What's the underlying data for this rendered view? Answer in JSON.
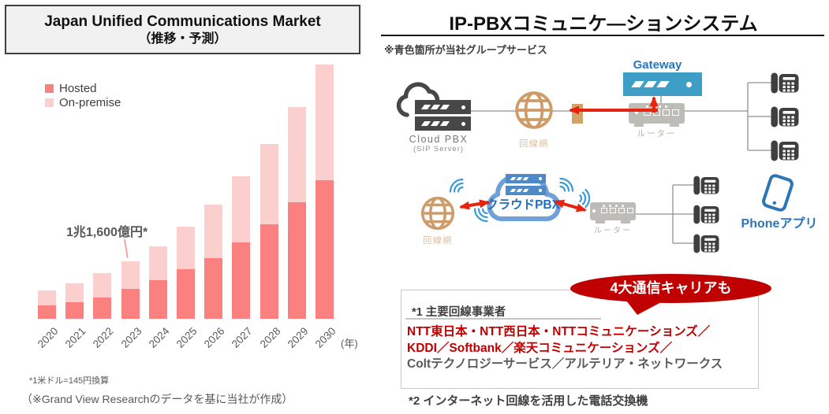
{
  "left_panel": {
    "title_line1": "Japan Unified Communications Market",
    "title_line2": "（推移・予測）",
    "axis_unit": "(年)",
    "footnote1": "*1米ドル=145円換算",
    "footnote2": "（※Grand View Researchのデータを基に当社が作成）"
  },
  "chart_data": {
    "type": "bar",
    "stacked": true,
    "title": "Japan Unified Communications Market（推移・予測）",
    "categories": [
      "2020",
      "2021",
      "2022",
      "2023",
      "2024",
      "2025",
      "2026",
      "2027",
      "2028",
      "2029",
      "2030"
    ],
    "series": [
      {
        "name": "Hosted",
        "color": "#FB8080",
        "values": [
          2700,
          3350,
          4300,
          6050,
          7800,
          10000,
          12250,
          15400,
          19050,
          23500,
          28000
        ]
      },
      {
        "name": "On-premise",
        "color": "#FCCFCF",
        "values": [
          3000,
          3800,
          4900,
          5550,
          6850,
          8600,
          10800,
          13350,
          16200,
          19250,
          23350
        ]
      }
    ],
    "unit": "億円（推定・2023年合計=1兆1,600億円基準）",
    "annotation": {
      "text": "1兆1,600億円*",
      "target_category": "2023"
    },
    "xlabel": "(年)",
    "ylabel": "",
    "legend_position": "top-left",
    "gridlines": false,
    "y_axis_shown": false
  },
  "right_panel": {
    "title": "IP-PBXコミュニケ―ションシステム",
    "note": "※青色箇所が当社グループサービス",
    "diagram": {
      "cloud_pbx_label": "Cloud PBX",
      "cloud_pbx_sublabel": "(SIP Server)",
      "network_label_top": "回線網",
      "network_label_mid": "回線網",
      "gateway_label": "Gateway",
      "router_label_top": "ルーター",
      "router_label_mid": "ルーター",
      "cloud_pbx_jp_label": "クラウドPBX",
      "phone_app_label": "Phoneアプリ"
    },
    "badge": "4大通信キャリアも",
    "carriers_box": {
      "heading": "*1 主要回線事業者",
      "lines": [
        {
          "text": "NTT東日本・NTT西日本・NTTコミュニケーションズ／",
          "color": "#C00000"
        },
        {
          "text": "KDDI／Softbank／楽天コミュニケーションズ／",
          "color": "#C00000"
        },
        {
          "text": "Coltテクノロジーサービス／アルテリア・ネットワークス",
          "color": "#595959"
        }
      ]
    },
    "footnote": "*2 インターネット回線を活用した電話交換機"
  },
  "colors": {
    "hosted": "#FB8080",
    "on_premise": "#FCCFCF",
    "leader_pink": "#F0A6A6",
    "badge_red": "#C00000",
    "arrow_red": "#E8230D",
    "gateway_blue": "#3E9EC6",
    "cloud_stroke_blue": "#6FA0D8",
    "inner_server_blue": "#4E8AC8",
    "blue_text": "#2E75B6",
    "cloud_jp_text": "#1F6FC0",
    "globe_tan": "#CE9C68",
    "tan_block": "#D2A269",
    "phone_dark": "#3F3F3F",
    "router_gray": "#BDBCB6",
    "line_gray": "#909090"
  }
}
